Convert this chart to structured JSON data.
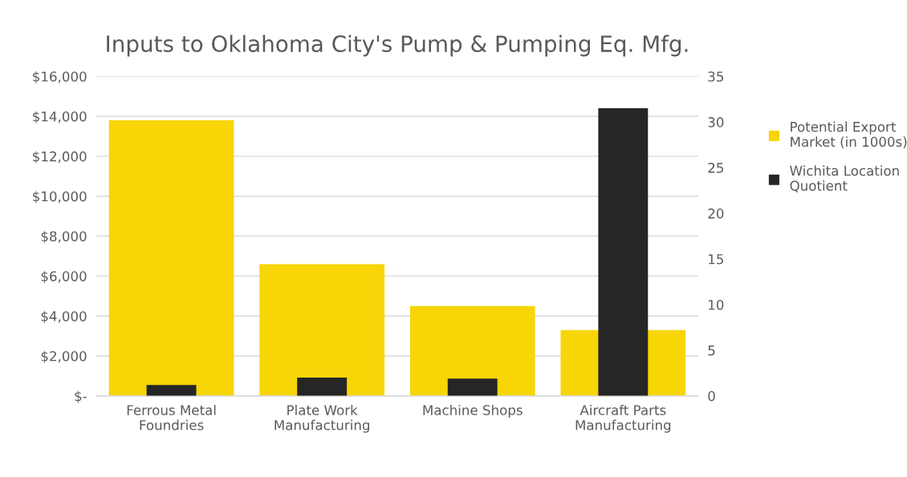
{
  "chart_data": {
    "type": "bar",
    "title": "Inputs to Oklahoma City's Pump & Pumping Eq. Mfg.",
    "categories": [
      "Ferrous Metal\nFoundries",
      "Plate Work\nManufacturing",
      "Machine Shops",
      "Aircraft Parts\nManufacturing"
    ],
    "series": [
      {
        "name": "Potential Export Market (in 1000s)",
        "color": "#f7d506",
        "values": [
          13800,
          6600,
          4500,
          3300
        ]
      },
      {
        "name": "Wichita Location Quotient",
        "color": "#262626",
        "values": [
          1.2,
          2.0,
          1.9,
          31.5
        ],
        "axis": "y2"
      }
    ],
    "ylim": [
      0,
      16000
    ],
    "yticks": [
      {
        "value": 0,
        "label": "$-"
      },
      {
        "value": 2000,
        "label": "$2,000"
      },
      {
        "value": 4000,
        "label": "$4,000"
      },
      {
        "value": 6000,
        "label": "$6,000"
      },
      {
        "value": 8000,
        "label": "$8,000"
      },
      {
        "value": 10000,
        "label": "$10,000"
      },
      {
        "value": 12000,
        "label": "$12,000"
      },
      {
        "value": 14000,
        "label": "$14,000"
      },
      {
        "value": 16000,
        "label": "$16,000"
      }
    ],
    "y2lim": [
      0,
      35
    ],
    "y2ticks": [
      0,
      5,
      10,
      15,
      20,
      25,
      30,
      35
    ],
    "grid": "y",
    "legend": "right"
  }
}
